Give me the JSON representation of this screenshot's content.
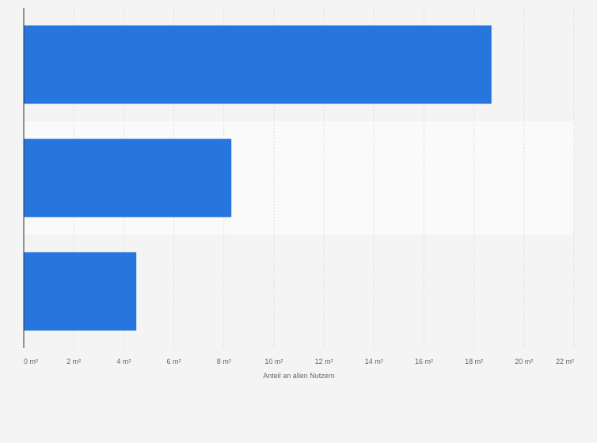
{
  "chart_data": {
    "type": "bar",
    "orientation": "horizontal",
    "categories": [
      "",
      "",
      ""
    ],
    "values": [
      18.7,
      8.3,
      4.5
    ],
    "title": "",
    "xlabel": "Anteil an allen Nutzern",
    "ylabel": "",
    "xlim": [
      0,
      22
    ],
    "ticks": [
      0,
      2,
      4,
      6,
      8,
      10,
      12,
      14,
      16,
      18,
      20,
      22
    ],
    "tick_labels": [
      "0 m²",
      "2 m²",
      "4 m²",
      "6 m²",
      "8 m²",
      "10 m²",
      "12 m²",
      "14 m²",
      "16 m²",
      "18 m²",
      "20 m²",
      "22 m²"
    ],
    "grid": true,
    "legend": "none"
  },
  "colors": {
    "bar": "#2776dd",
    "background": "#f4f4f4",
    "band_alt": "#fafafa",
    "grid": "#dddddd",
    "axis": "#333333",
    "text": "#666666"
  }
}
